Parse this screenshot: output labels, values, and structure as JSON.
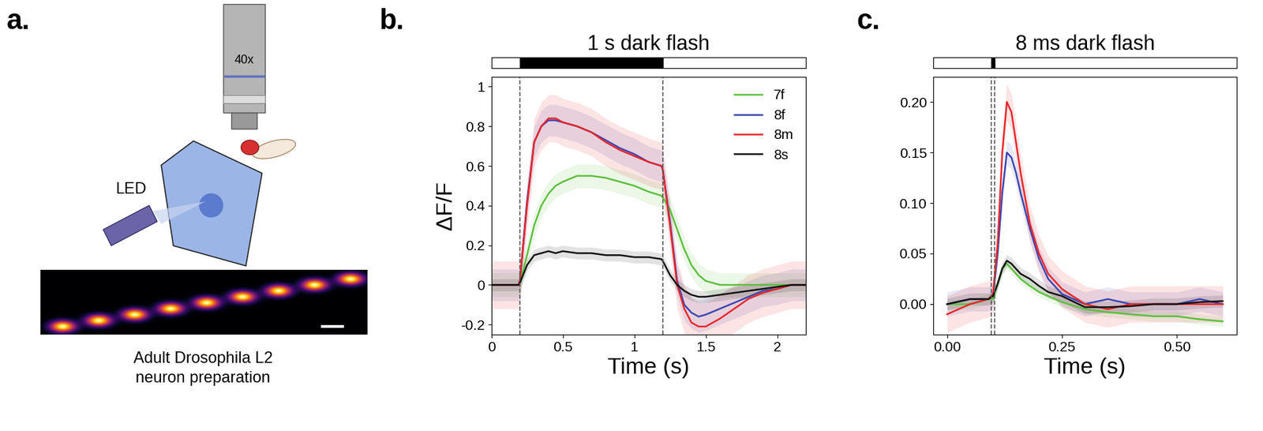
{
  "diagram": {
    "panel_label": "a.",
    "objective_label": "40x",
    "light_label": "LED",
    "caption": [
      "Adult Drosophila L2",
      "neuron preparation"
    ]
  },
  "chart_data": [
    {
      "type": "line",
      "panel_label": "b.",
      "title": "1 s dark flash",
      "x_label": "Time (s)",
      "y_label": "ΔF/F",
      "stimulus": [
        0.2,
        1.2
      ],
      "legend": "upper right",
      "xlim": [
        0,
        2.2
      ],
      "xticks": [
        0,
        0.5,
        1,
        1.5,
        2
      ],
      "ylim": [
        -0.25,
        1.05
      ],
      "yticks": [
        -0.2,
        0,
        0.2,
        0.4,
        0.6,
        0.8,
        1
      ],
      "x": [
        0,
        0.1,
        0.19,
        0.2,
        0.25,
        0.3,
        0.35,
        0.4,
        0.45,
        0.5,
        0.6,
        0.7,
        0.8,
        0.9,
        1.0,
        1.1,
        1.19,
        1.2,
        1.25,
        1.3,
        1.35,
        1.4,
        1.45,
        1.5,
        1.6,
        1.7,
        1.8,
        1.9,
        2.0,
        2.1,
        2.2
      ],
      "series": [
        {
          "name": "7f",
          "color": "#5cbf3c",
          "error": 0.06,
          "values": [
            0,
            0,
            0,
            0.01,
            0.15,
            0.3,
            0.4,
            0.46,
            0.5,
            0.52,
            0.55,
            0.55,
            0.54,
            0.52,
            0.5,
            0.47,
            0.45,
            0.44,
            0.38,
            0.28,
            0.18,
            0.1,
            0.05,
            0.02,
            0.0,
            0,
            0,
            0,
            0,
            0,
            0
          ]
        },
        {
          "name": "8f",
          "color": "#3a45b0",
          "error": 0.08,
          "values": [
            0,
            0,
            0,
            0.02,
            0.42,
            0.72,
            0.8,
            0.83,
            0.83,
            0.82,
            0.8,
            0.77,
            0.73,
            0.69,
            0.66,
            0.62,
            0.6,
            0.58,
            0.32,
            0.02,
            -0.1,
            -0.14,
            -0.16,
            -0.15,
            -0.12,
            -0.09,
            -0.06,
            -0.03,
            -0.02,
            0,
            0
          ]
        },
        {
          "name": "8m",
          "color": "#e8262a",
          "error": 0.12,
          "values": [
            0,
            0,
            0,
            0.02,
            0.4,
            0.72,
            0.8,
            0.84,
            0.84,
            0.82,
            0.8,
            0.77,
            0.72,
            0.68,
            0.65,
            0.62,
            0.6,
            0.58,
            0.3,
            0.0,
            -0.12,
            -0.19,
            -0.21,
            -0.21,
            -0.17,
            -0.12,
            -0.07,
            -0.04,
            -0.02,
            0,
            0
          ]
        },
        {
          "name": "8s",
          "color": "#111111",
          "error": 0.03,
          "values": [
            0,
            0,
            0,
            0.01,
            0.1,
            0.15,
            0.16,
            0.17,
            0.16,
            0.17,
            0.16,
            0.16,
            0.15,
            0.15,
            0.14,
            0.14,
            0.13,
            0.12,
            0.05,
            0,
            -0.03,
            -0.05,
            -0.06,
            -0.06,
            -0.05,
            -0.04,
            -0.03,
            -0.02,
            -0.01,
            0,
            0
          ]
        }
      ]
    },
    {
      "type": "line",
      "panel_label": "c.",
      "title": "8 ms dark flash",
      "x_label": "Time (s)",
      "stimulus": [
        0.096,
        0.104
      ],
      "xlim": [
        -0.03,
        0.63
      ],
      "xticks": [
        {
          "value": 0,
          "label": "0.00"
        },
        {
          "value": 0.25,
          "label": "0.25"
        },
        {
          "value": 0.5,
          "label": "0.50"
        }
      ],
      "ylim": [
        -0.03,
        0.225
      ],
      "yticks": [
        {
          "value": 0,
          "label": "0.00"
        },
        {
          "value": 0.05,
          "label": "0.05"
        },
        {
          "value": 0.1,
          "label": "0.10"
        },
        {
          "value": 0.15,
          "label": "0.15"
        },
        {
          "value": 0.2,
          "label": "0.20"
        }
      ],
      "x": [
        0,
        0.05,
        0.09,
        0.1,
        0.11,
        0.12,
        0.13,
        0.14,
        0.15,
        0.16,
        0.18,
        0.2,
        0.22,
        0.25,
        0.3,
        0.35,
        0.4,
        0.45,
        0.5,
        0.55,
        0.6
      ],
      "series": [
        {
          "name": "7f",
          "color": "#5cbf3c",
          "error": 0.005,
          "values": [
            0,
            0.0,
            0.005,
            0.005,
            0.02,
            0.035,
            0.04,
            0.035,
            0.03,
            0.025,
            0.018,
            0.012,
            0.008,
            0.002,
            -0.005,
            -0.008,
            -0.01,
            -0.012,
            -0.012,
            -0.015,
            -0.017
          ]
        },
        {
          "name": "8f",
          "color": "#3a45b0",
          "error": 0.012,
          "values": [
            0,
            0.005,
            0.005,
            0.01,
            0.05,
            0.11,
            0.15,
            0.145,
            0.13,
            0.11,
            0.075,
            0.045,
            0.025,
            0.01,
            0.0,
            0.005,
            0,
            0,
            0,
            0.005,
            0
          ]
        },
        {
          "name": "8m",
          "color": "#e8262a",
          "error": 0.018,
          "values": [
            -0.01,
            0.0,
            0.005,
            0.01,
            0.06,
            0.15,
            0.2,
            0.19,
            0.16,
            0.13,
            0.08,
            0.05,
            0.03,
            0.015,
            0.0,
            -0.005,
            0,
            0,
            0,
            0,
            0
          ]
        },
        {
          "name": "8s",
          "color": "#111111",
          "error": 0.006,
          "values": [
            0,
            0.005,
            0.005,
            0.008,
            0.02,
            0.035,
            0.043,
            0.04,
            0.035,
            0.03,
            0.025,
            0.018,
            0.012,
            0.008,
            -0.003,
            -0.003,
            -0.002,
            0,
            0,
            0.002,
            0.003
          ]
        }
      ]
    }
  ]
}
